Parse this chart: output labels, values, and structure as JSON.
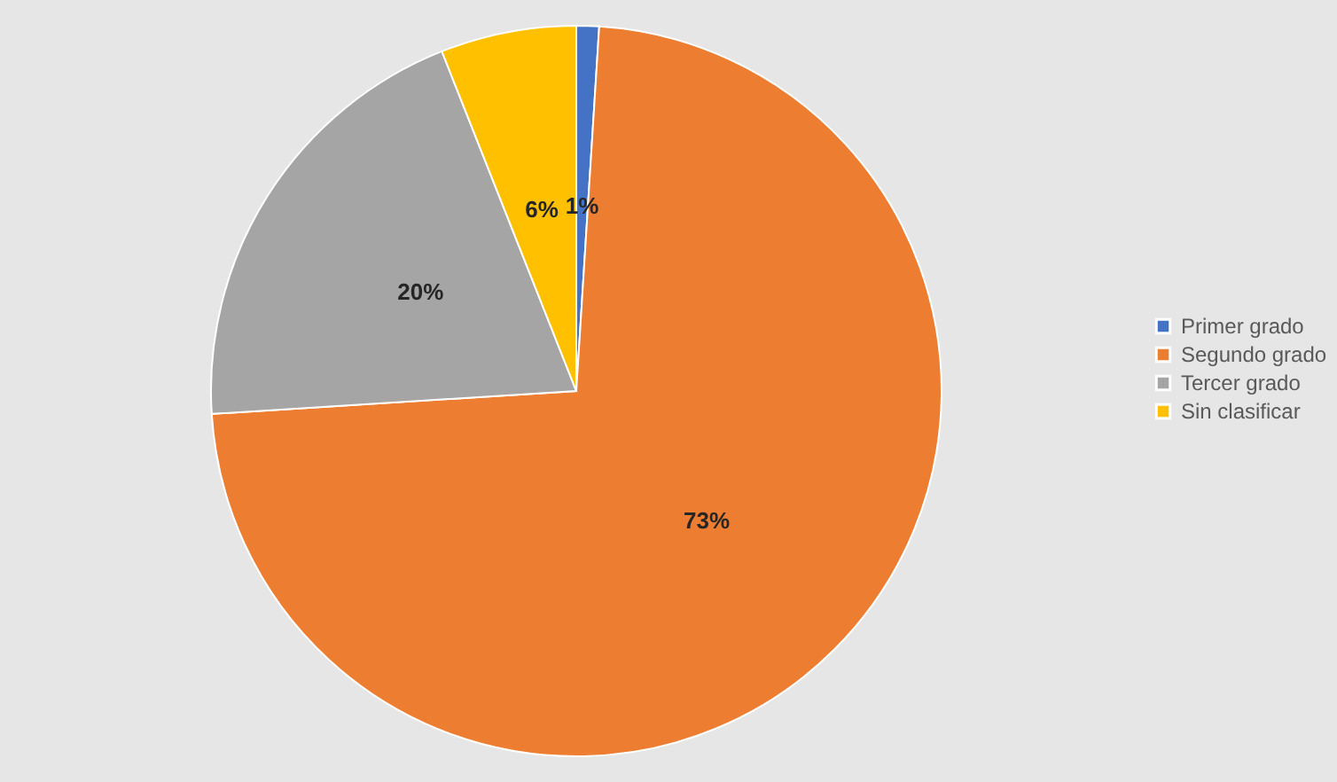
{
  "chart_data": {
    "type": "pie",
    "categories": [
      "Primer grado",
      "Segundo grado",
      "Tercer grado",
      "Sin clasificar"
    ],
    "values": [
      1,
      73,
      20,
      6
    ],
    "colors": [
      "#4472c4",
      "#ed7d31",
      "#a5a5a5",
      "#ffc000"
    ],
    "value_labels": [
      "1%",
      "73%",
      "20%",
      "6%"
    ],
    "legend": "right"
  }
}
